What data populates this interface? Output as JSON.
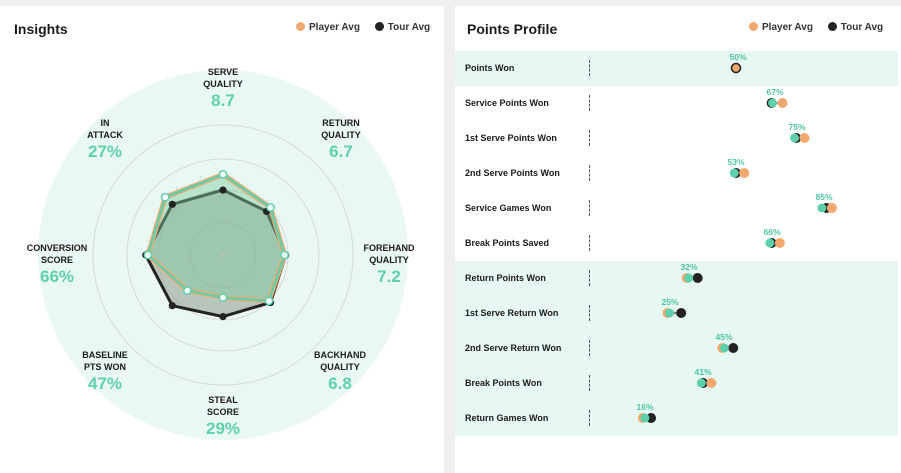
{
  "insights": {
    "title": "Insights",
    "legend": {
      "player": "Player Avg",
      "tour": "Tour Avg"
    },
    "axes": [
      {
        "name_lines": [
          "SERVE",
          "QUALITY"
        ],
        "value": "8.7"
      },
      {
        "name_lines": [
          "RETURN",
          "QUALITY"
        ],
        "value": "6.7"
      },
      {
        "name_lines": [
          "FOREHAND",
          "QUALITY"
        ],
        "value": "7.2"
      },
      {
        "name_lines": [
          "BACKHAND",
          "QUALITY"
        ],
        "value": "6.8"
      },
      {
        "name_lines": [
          "STEAL",
          "SCORE"
        ],
        "value": "29%"
      },
      {
        "name_lines": [
          "BASELINE",
          "PTS WON"
        ],
        "value": "47%"
      },
      {
        "name_lines": [
          "CONVERSION",
          "SCORE"
        ],
        "value": "66%"
      },
      {
        "name_lines": [
          "IN",
          "ATTACK"
        ],
        "value": "27%"
      }
    ],
    "radar_levels": {
      "player": [
        0.72,
        0.6,
        0.55,
        0.58,
        0.38,
        0.45,
        0.67,
        0.73
      ],
      "tour": [
        0.58,
        0.55,
        0.56,
        0.6,
        0.55,
        0.64,
        0.69,
        0.64
      ]
    }
  },
  "profile": {
    "title": "Points Profile",
    "legend": {
      "player": "Player Avg",
      "tour": "Tour Avg"
    },
    "rows": [
      {
        "label": "Points Won",
        "pct": "50%",
        "player": 50,
        "tour": 50,
        "highlight": true
      },
      {
        "label": "Service Points Won",
        "pct": "67%",
        "player": 67,
        "tour": 63,
        "highlight": false
      },
      {
        "label": "1st Serve Points Won",
        "pct": "75%",
        "player": 75,
        "tour": 72,
        "highlight": false
      },
      {
        "label": "2nd Serve Points Won",
        "pct": "53%",
        "player": 53,
        "tour": 50,
        "highlight": false
      },
      {
        "label": "Service Games Won",
        "pct": "85%",
        "player": 85,
        "tour": 83,
        "highlight": false
      },
      {
        "label": "Break Points Saved",
        "pct": "66%",
        "player": 66,
        "tour": 63,
        "highlight": false
      },
      {
        "label": "Return Points Won",
        "pct": "32%",
        "player": 32,
        "tour": 36,
        "highlight": true
      },
      {
        "label": "1st Serve Return Won",
        "pct": "25%",
        "player": 25,
        "tour": 30,
        "highlight": true
      },
      {
        "label": "2nd Serve Return Won",
        "pct": "45%",
        "player": 45,
        "tour": 49,
        "highlight": true
      },
      {
        "label": "Break Points Won",
        "pct": "41%",
        "player": 41,
        "tour": 38,
        "highlight": true
      },
      {
        "label": "Return Games Won",
        "pct": "16%",
        "player": 16,
        "tour": 19,
        "highlight": true
      }
    ]
  },
  "colors": {
    "player": "#f2a96f",
    "tour": "#222222",
    "accent": "#5ed0ad",
    "radar_bg": "#eaf8f3"
  }
}
